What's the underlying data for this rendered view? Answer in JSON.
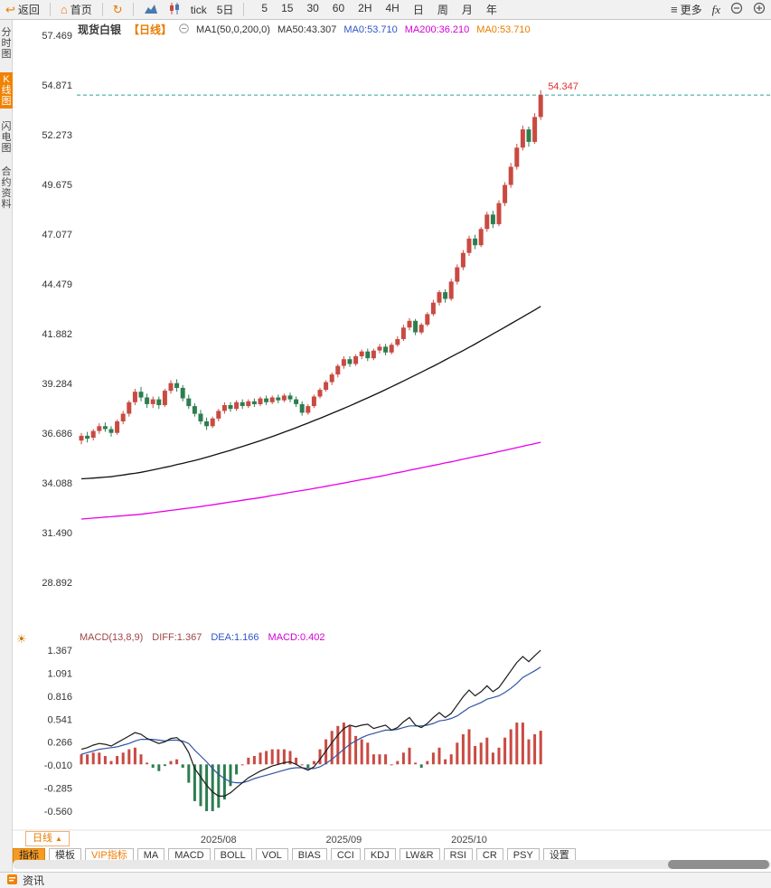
{
  "toolbar": {
    "back_label": "返回",
    "home_label": "首页",
    "tick_label": "tick",
    "five_day_label": "5日",
    "timeframes": [
      "5",
      "15",
      "30",
      "60",
      "2H",
      "4H",
      "日",
      "周",
      "月",
      "年"
    ],
    "more_label": "更多",
    "fx_label": "fx"
  },
  "sidebar": {
    "items": [
      {
        "label": "分时图",
        "active": false
      },
      {
        "label": "K线图",
        "active": true
      },
      {
        "label": "闪电图",
        "active": false
      },
      {
        "label": "合约资料",
        "active": false
      }
    ]
  },
  "chart_header": {
    "symbol": "现货白银",
    "period": "【日线】",
    "ma_settings": "MA1(50,0,200,0)",
    "ma50": "MA50:43.307",
    "ma0_a": "MA0:53.710",
    "ma200": "MA200:36.210",
    "ma0_b": "MA0:53.710"
  },
  "macd_header": {
    "name": "MACD(13,8,9)",
    "diff": "DIFF:1.367",
    "dea": "DEA:1.166",
    "macd": "MACD:0.402"
  },
  "bottom": {
    "period_button": "日线",
    "period_arrow": "▲",
    "tabs": [
      {
        "label": "指标",
        "variant": "active"
      },
      {
        "label": "模板",
        "variant": "normal"
      },
      {
        "label": "VIP指标",
        "variant": "vip"
      },
      {
        "label": "MA",
        "variant": "normal"
      },
      {
        "label": "MACD",
        "variant": "normal"
      },
      {
        "label": "BOLL",
        "variant": "normal"
      },
      {
        "label": "VOL",
        "variant": "normal"
      },
      {
        "label": "BIAS",
        "variant": "normal"
      },
      {
        "label": "CCI",
        "variant": "normal"
      },
      {
        "label": "KDJ",
        "variant": "normal"
      },
      {
        "label": "LW&R",
        "variant": "normal"
      },
      {
        "label": "RSI",
        "variant": "normal"
      },
      {
        "label": "CR",
        "variant": "normal"
      },
      {
        "label": "PSY",
        "variant": "normal"
      },
      {
        "label": "设置",
        "variant": "normal"
      }
    ]
  },
  "statusbar": {
    "news_label": "资讯"
  },
  "colors": {
    "accent_orange": "#f08200",
    "up": "#c94a42",
    "down": "#2e7d4f",
    "ma50": "#111111",
    "ma200": "#e800e8",
    "dashed": "#2aa198",
    "diff_line": "#1a1a1a",
    "dea_line": "#2f55a4",
    "label_red": "#e03030"
  },
  "chart_data": {
    "type": "candlestick",
    "title": "现货白银 日线",
    "y_ticks": [
      "57.469",
      "54.871",
      "52.273",
      "49.675",
      "47.077",
      "44.479",
      "41.882",
      "39.284",
      "36.686",
      "34.088",
      "31.490",
      "28.892"
    ],
    "last_price": 54.347,
    "price_label": "54.347",
    "month_labels": [
      {
        "label": "2025/08",
        "index": 23
      },
      {
        "label": "2025/09",
        "index": 44
      },
      {
        "label": "2025/10",
        "index": 65
      }
    ],
    "candles": [
      [
        36.3,
        36.7,
        36.1,
        36.55
      ],
      [
        36.55,
        36.75,
        36.2,
        36.4
      ],
      [
        36.45,
        36.9,
        36.3,
        36.8
      ],
      [
        36.8,
        37.2,
        36.65,
        37.05
      ],
      [
        37.05,
        37.25,
        36.75,
        36.9
      ],
      [
        36.9,
        37.05,
        36.5,
        36.7
      ],
      [
        36.7,
        37.4,
        36.6,
        37.3
      ],
      [
        37.3,
        37.85,
        37.15,
        37.7
      ],
      [
        37.7,
        38.4,
        37.55,
        38.3
      ],
      [
        38.3,
        39.0,
        38.15,
        38.85
      ],
      [
        38.85,
        39.1,
        38.35,
        38.55
      ],
      [
        38.55,
        38.75,
        38.0,
        38.2
      ],
      [
        38.2,
        38.6,
        38.0,
        38.45
      ],
      [
        38.45,
        38.6,
        37.95,
        38.15
      ],
      [
        38.15,
        39.0,
        38.05,
        38.9
      ],
      [
        38.9,
        39.45,
        38.75,
        39.3
      ],
      [
        39.3,
        39.5,
        38.85,
        39.05
      ],
      [
        39.05,
        39.2,
        38.35,
        38.5
      ],
      [
        38.5,
        38.7,
        37.95,
        38.1
      ],
      [
        38.1,
        38.25,
        37.55,
        37.7
      ],
      [
        37.7,
        37.9,
        37.15,
        37.3
      ],
      [
        37.3,
        37.5,
        36.85,
        37.05
      ],
      [
        37.05,
        37.55,
        36.95,
        37.45
      ],
      [
        37.45,
        37.95,
        37.3,
        37.85
      ],
      [
        37.85,
        38.3,
        37.7,
        38.15
      ],
      [
        38.15,
        38.3,
        37.8,
        37.95
      ],
      [
        37.95,
        38.4,
        37.85,
        38.3
      ],
      [
        38.3,
        38.45,
        37.95,
        38.1
      ],
      [
        38.1,
        38.45,
        38.0,
        38.35
      ],
      [
        38.35,
        38.5,
        38.05,
        38.2
      ],
      [
        38.2,
        38.6,
        38.1,
        38.5
      ],
      [
        38.5,
        38.65,
        38.15,
        38.3
      ],
      [
        38.3,
        38.65,
        38.2,
        38.55
      ],
      [
        38.55,
        38.7,
        38.25,
        38.4
      ],
      [
        38.4,
        38.75,
        38.3,
        38.65
      ],
      [
        38.65,
        38.8,
        38.3,
        38.45
      ],
      [
        38.45,
        38.6,
        38.05,
        38.2
      ],
      [
        38.2,
        38.35,
        37.6,
        37.75
      ],
      [
        37.75,
        38.2,
        37.65,
        38.1
      ],
      [
        38.1,
        38.7,
        38.0,
        38.6
      ],
      [
        38.6,
        39.05,
        38.5,
        38.95
      ],
      [
        38.95,
        39.45,
        38.85,
        39.35
      ],
      [
        39.35,
        39.85,
        39.2,
        39.75
      ],
      [
        39.75,
        40.3,
        39.6,
        40.2
      ],
      [
        40.2,
        40.7,
        40.05,
        40.55
      ],
      [
        40.55,
        40.7,
        40.15,
        40.3
      ],
      [
        40.3,
        40.8,
        40.2,
        40.7
      ],
      [
        40.7,
        41.05,
        40.55,
        40.95
      ],
      [
        40.95,
        41.1,
        40.45,
        40.6
      ],
      [
        40.6,
        41.1,
        40.5,
        41.0
      ],
      [
        41.0,
        41.35,
        40.85,
        41.2
      ],
      [
        41.2,
        41.35,
        40.75,
        40.9
      ],
      [
        40.9,
        41.4,
        40.8,
        41.3
      ],
      [
        41.3,
        41.75,
        41.2,
        41.6
      ],
      [
        41.6,
        42.35,
        41.5,
        42.2
      ],
      [
        42.2,
        42.7,
        42.05,
        42.55
      ],
      [
        42.55,
        42.65,
        41.8,
        41.95
      ],
      [
        41.95,
        42.45,
        41.85,
        42.35
      ],
      [
        42.35,
        43.0,
        42.25,
        42.9
      ],
      [
        42.9,
        43.65,
        42.8,
        43.5
      ],
      [
        43.5,
        44.15,
        43.35,
        44.05
      ],
      [
        44.05,
        44.2,
        43.5,
        43.7
      ],
      [
        43.7,
        44.75,
        43.6,
        44.6
      ],
      [
        44.6,
        45.5,
        44.45,
        45.35
      ],
      [
        45.35,
        46.25,
        45.2,
        46.1
      ],
      [
        46.1,
        47.0,
        45.95,
        46.85
      ],
      [
        46.85,
        47.05,
        46.3,
        46.5
      ],
      [
        46.5,
        47.45,
        46.4,
        47.35
      ],
      [
        47.35,
        48.25,
        47.2,
        48.1
      ],
      [
        48.1,
        48.3,
        47.4,
        47.6
      ],
      [
        47.6,
        48.85,
        47.5,
        48.7
      ],
      [
        48.7,
        49.8,
        48.55,
        49.65
      ],
      [
        49.65,
        50.8,
        49.5,
        50.6
      ],
      [
        50.6,
        51.8,
        50.45,
        51.6
      ],
      [
        51.6,
        52.75,
        51.45,
        52.55
      ],
      [
        52.55,
        52.7,
        51.65,
        51.9
      ],
      [
        51.9,
        53.4,
        51.8,
        53.2
      ],
      [
        53.2,
        54.6,
        53.05,
        54.347
      ]
    ],
    "ma50": [
      34.3,
      34.32,
      34.34,
      34.36,
      34.39,
      34.41,
      34.46,
      34.5,
      34.55,
      34.59,
      34.64,
      34.7,
      34.77,
      34.83,
      34.9,
      34.96,
      35.04,
      35.11,
      35.19,
      35.26,
      35.34,
      35.43,
      35.52,
      35.61,
      35.7,
      35.79,
      35.89,
      35.99,
      36.09,
      36.19,
      36.29,
      36.4,
      36.51,
      36.62,
      36.74,
      36.85,
      36.97,
      37.09,
      37.21,
      37.34,
      37.46,
      37.59,
      37.72,
      37.85,
      37.98,
      38.11,
      38.25,
      38.39,
      38.53,
      38.67,
      38.81,
      38.96,
      39.11,
      39.26,
      39.41,
      39.56,
      39.72,
      39.87,
      40.03,
      40.18,
      40.34,
      40.51,
      40.67,
      40.84,
      41.0,
      41.17,
      41.34,
      41.52,
      41.69,
      41.87,
      42.04,
      42.22,
      42.4,
      42.58,
      42.76,
      42.94,
      43.12,
      43.31
    ],
    "ma200": [
      32.2,
      32.22,
      32.25,
      32.27,
      32.3,
      32.32,
      32.35,
      32.37,
      32.4,
      32.42,
      32.45,
      32.49,
      32.53,
      32.57,
      32.61,
      32.65,
      32.69,
      32.73,
      32.77,
      32.81,
      32.85,
      32.9,
      32.94,
      32.99,
      33.04,
      33.09,
      33.13,
      33.18,
      33.23,
      33.27,
      33.32,
      33.37,
      33.43,
      33.48,
      33.53,
      33.59,
      33.64,
      33.69,
      33.74,
      33.8,
      33.85,
      33.91,
      33.97,
      34.02,
      34.08,
      34.14,
      34.2,
      34.26,
      34.31,
      34.37,
      34.43,
      34.49,
      34.56,
      34.62,
      34.68,
      34.75,
      34.81,
      34.87,
      34.94,
      35.0,
      35.06,
      35.13,
      35.19,
      35.26,
      35.33,
      35.39,
      35.46,
      35.52,
      35.59,
      35.65,
      35.72,
      35.79,
      35.86,
      35.93,
      36.0,
      36.07,
      36.14,
      36.21
    ],
    "macd": {
      "params": "(13,8,9)",
      "ticks": [
        "1.367",
        "1.091",
        "0.816",
        "0.541",
        "0.266",
        "-0.010",
        "-0.285",
        "-0.560"
      ],
      "diff": [
        0.18,
        0.2,
        0.23,
        0.25,
        0.24,
        0.22,
        0.26,
        0.3,
        0.34,
        0.38,
        0.36,
        0.31,
        0.28,
        0.25,
        0.27,
        0.31,
        0.32,
        0.26,
        0.14,
        -0.05,
        -0.15,
        -0.25,
        -0.33,
        -0.38,
        -0.38,
        -0.34,
        -0.28,
        -0.22,
        -0.16,
        -0.12,
        -0.08,
        -0.05,
        -0.02,
        0.0,
        0.02,
        0.03,
        0.0,
        -0.04,
        -0.07,
        -0.03,
        0.06,
        0.16,
        0.26,
        0.35,
        0.43,
        0.47,
        0.45,
        0.47,
        0.48,
        0.43,
        0.45,
        0.47,
        0.41,
        0.44,
        0.51,
        0.56,
        0.47,
        0.44,
        0.49,
        0.56,
        0.62,
        0.56,
        0.61,
        0.71,
        0.81,
        0.89,
        0.82,
        0.87,
        0.94,
        0.87,
        0.92,
        1.02,
        1.12,
        1.22,
        1.29,
        1.23,
        1.3,
        1.367
      ],
      "dea": [
        0.12,
        0.14,
        0.16,
        0.18,
        0.19,
        0.2,
        0.21,
        0.23,
        0.25,
        0.28,
        0.3,
        0.3,
        0.3,
        0.29,
        0.28,
        0.29,
        0.29,
        0.28,
        0.25,
        0.17,
        0.1,
        0.03,
        -0.05,
        -0.12,
        -0.17,
        -0.21,
        -0.22,
        -0.22,
        -0.2,
        -0.17,
        -0.15,
        -0.13,
        -0.11,
        -0.09,
        -0.07,
        -0.05,
        -0.04,
        -0.04,
        -0.05,
        -0.05,
        -0.03,
        0.01,
        0.06,
        0.12,
        0.18,
        0.24,
        0.28,
        0.32,
        0.35,
        0.37,
        0.39,
        0.41,
        0.41,
        0.42,
        0.44,
        0.46,
        0.46,
        0.46,
        0.47,
        0.49,
        0.52,
        0.53,
        0.55,
        0.58,
        0.63,
        0.68,
        0.71,
        0.74,
        0.78,
        0.8,
        0.82,
        0.86,
        0.91,
        0.97,
        1.04,
        1.08,
        1.12,
        1.166
      ]
    }
  }
}
